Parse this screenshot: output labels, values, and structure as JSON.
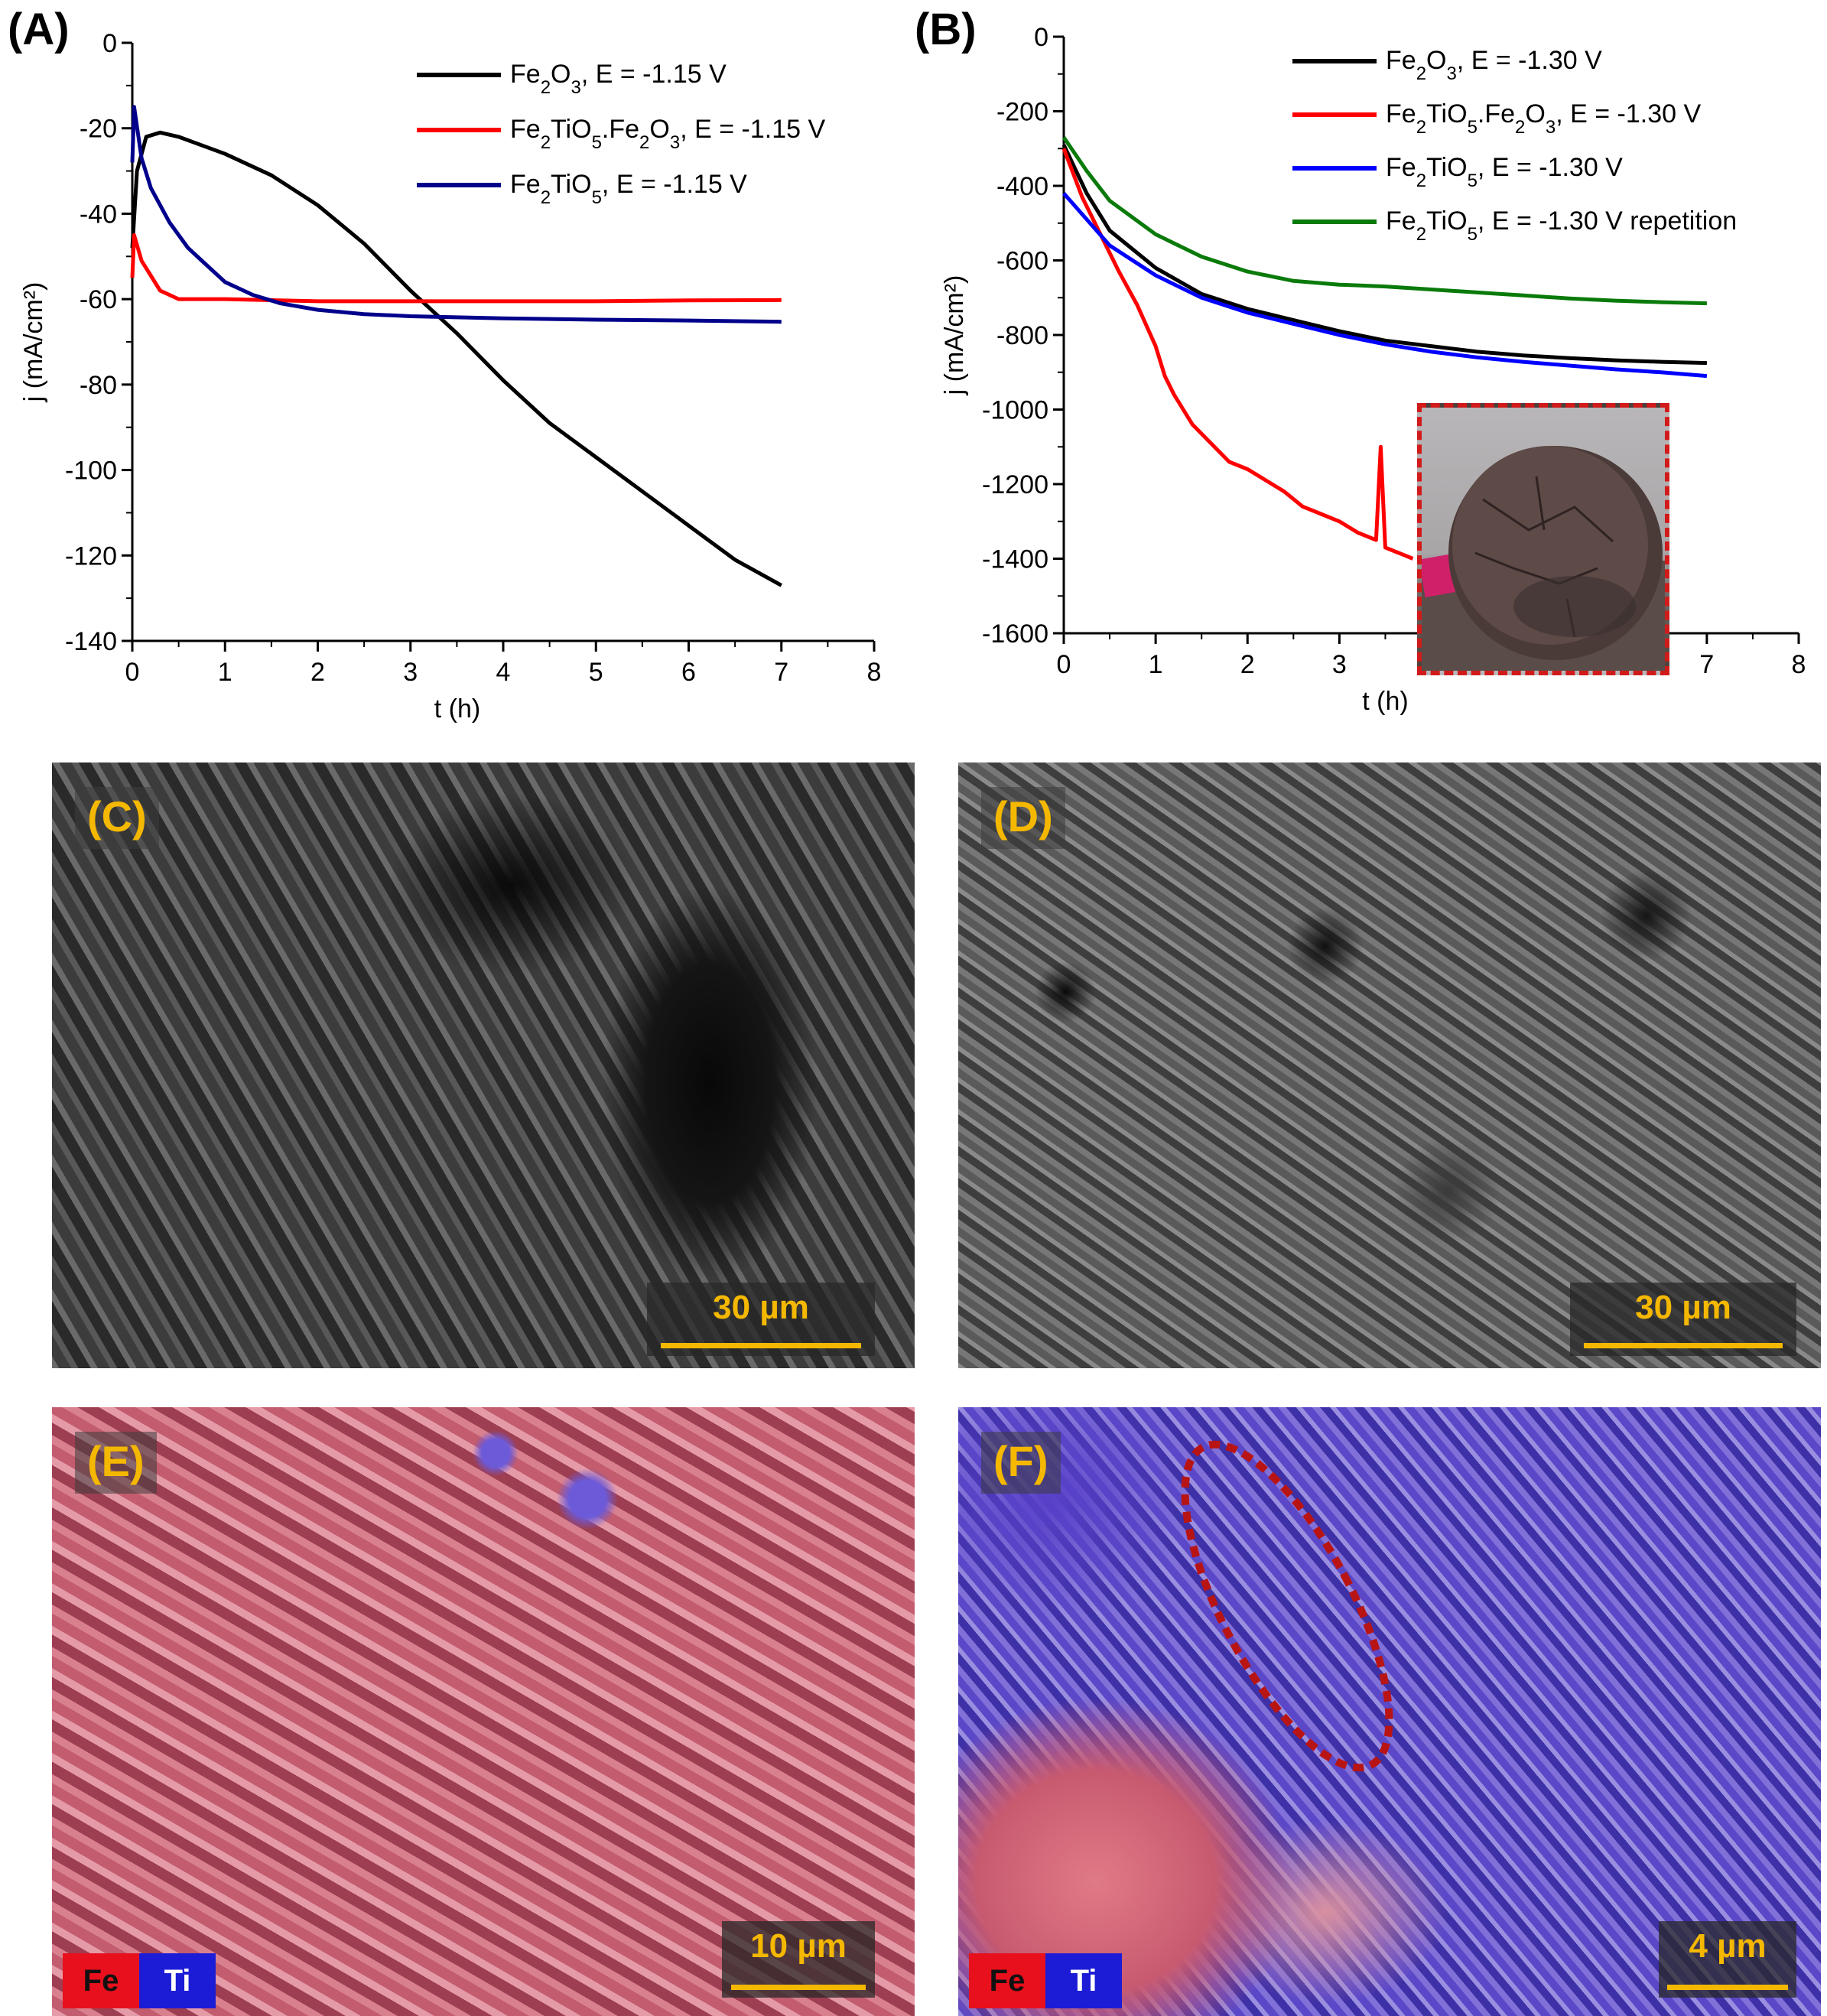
{
  "chart_data": [
    {
      "panel": "(A)",
      "type": "line",
      "xlabel": "t (h)",
      "ylabel": "j (mA/cm²)",
      "xlim": [
        0,
        8
      ],
      "ylim": [
        -140,
        0
      ],
      "xticks": [
        "0",
        "1",
        "2",
        "3",
        "4",
        "5",
        "6",
        "7",
        "8"
      ],
      "yticks": [
        "0",
        "-20",
        "-40",
        "-60",
        "-80",
        "-100",
        "-120",
        "-140"
      ],
      "legend_position": "top-right",
      "series": [
        {
          "name": "Fe₂O₃, E = -1.15 V",
          "color": "#000000",
          "x": [
            0,
            0.05,
            0.15,
            0.3,
            0.5,
            1.0,
            1.5,
            2.0,
            2.5,
            3.0,
            3.5,
            4.0,
            4.5,
            5.0,
            5.5,
            6.0,
            6.5,
            7.0
          ],
          "y": [
            -48,
            -30,
            -22,
            -21,
            -22,
            -26,
            -31,
            -38,
            -47,
            -58,
            -68,
            -79,
            -89,
            -97,
            -105,
            -113,
            -121,
            -127
          ]
        },
        {
          "name": "Fe₂TiO₅.Fe₂O₃, E = -1.15 V",
          "color": "#ff0000",
          "x": [
            0,
            0.02,
            0.1,
            0.3,
            0.5,
            0.8,
            1.0,
            2.0,
            3.0,
            4.0,
            5.0,
            6.0,
            7.0
          ],
          "y": [
            -55,
            -45,
            -51,
            -58,
            -60,
            -60,
            -60,
            -60.5,
            -60.5,
            -60.5,
            -60.5,
            -60.3,
            -60.2
          ]
        },
        {
          "name": "Fe₂TiO₅, E = -1.15 V",
          "color": "#00008b",
          "x": [
            0,
            0.02,
            0.1,
            0.2,
            0.4,
            0.6,
            0.8,
            1.0,
            1.3,
            1.6,
            2.0,
            2.5,
            3.0,
            4.0,
            5.0,
            6.0,
            7.0
          ],
          "y": [
            -28,
            -15,
            -27,
            -34,
            -42,
            -48,
            -52,
            -56,
            -59,
            -61,
            -62.5,
            -63.5,
            -64,
            -64.5,
            -64.8,
            -65,
            -65.3
          ]
        }
      ]
    },
    {
      "panel": "(B)",
      "type": "line",
      "xlabel": "t (h)",
      "ylabel": "j (mA/cm²)",
      "xlim": [
        0,
        8
      ],
      "ylim": [
        -1600,
        0
      ],
      "xticks": [
        "0",
        "1",
        "2",
        "3",
        "4",
        "5",
        "6",
        "7",
        "8"
      ],
      "yticks": [
        "0",
        "-200",
        "-400",
        "-600",
        "-800",
        "-1000",
        "-1200",
        "-1400",
        "-1600"
      ],
      "legend_position": "top-right",
      "series": [
        {
          "name": "Fe₂O₃, E = -1.30 V",
          "color": "#000000",
          "x": [
            0,
            0.25,
            0.5,
            1.0,
            1.5,
            2.0,
            2.5,
            3.0,
            3.5,
            4.0,
            4.5,
            5.0,
            5.5,
            6.0,
            6.5,
            7.0
          ],
          "y": [
            -290,
            -420,
            -520,
            -620,
            -690,
            -730,
            -760,
            -790,
            -815,
            -830,
            -845,
            -855,
            -862,
            -868,
            -872,
            -875
          ]
        },
        {
          "name": "Fe₂TiO₅.Fe₂O₃, E = -1.30 V",
          "color": "#ff0000",
          "x": [
            0,
            0.2,
            0.4,
            0.6,
            0.8,
            1.0,
            1.1,
            1.2,
            1.4,
            1.6,
            1.8,
            2.0,
            2.2,
            2.4,
            2.6,
            2.8,
            3.0,
            3.2,
            3.4,
            3.45,
            3.5,
            3.6,
            3.7,
            3.8
          ],
          "y": [
            -300,
            -430,
            -530,
            -630,
            -720,
            -830,
            -910,
            -960,
            -1040,
            -1090,
            -1140,
            -1160,
            -1190,
            -1220,
            -1260,
            -1280,
            -1300,
            -1330,
            -1350,
            -1100,
            -1370,
            -1380,
            -1390,
            -1400
          ]
        },
        {
          "name": "Fe₂TiO₅, E = -1.30 V",
          "color": "#0000ff",
          "x": [
            0,
            0.25,
            0.5,
            1.0,
            1.5,
            2.0,
            2.5,
            3.0,
            3.5,
            4.0,
            4.5,
            5.0,
            5.5,
            6.0,
            6.5,
            7.0
          ],
          "y": [
            -420,
            -490,
            -560,
            -640,
            -700,
            -740,
            -770,
            -800,
            -825,
            -845,
            -860,
            -872,
            -882,
            -892,
            -900,
            -910
          ]
        },
        {
          "name": "Fe₂TiO₅, E = -1.30 V repetition",
          "color": "#0a7a0a",
          "x": [
            0,
            0.25,
            0.5,
            1.0,
            1.5,
            2.0,
            2.5,
            3.0,
            3.5,
            4.0,
            4.5,
            5.0,
            5.5,
            6.0,
            6.5,
            7.0
          ],
          "y": [
            -270,
            -360,
            -440,
            -530,
            -590,
            -630,
            -655,
            -665,
            -670,
            -678,
            -686,
            -694,
            -702,
            -708,
            -712,
            -715
          ]
        }
      ]
    }
  ],
  "panels": {
    "a": "(A)",
    "b": "(B)",
    "c": {
      "label": "(C)",
      "scale": "30 µm"
    },
    "d": {
      "label": "(D)",
      "scale": "30 µm"
    },
    "e": {
      "label": "(E)",
      "scale": "10 µm",
      "key": [
        "Fe",
        "Ti"
      ]
    },
    "f": {
      "label": "(F)",
      "scale": "4 µm",
      "key": [
        "Fe",
        "Ti"
      ]
    }
  },
  "colors": {
    "fe_key": "#e8101c",
    "ti_key": "#1c1cd6",
    "label_text": "#f5b800",
    "highlight_outline": "#b81414"
  }
}
